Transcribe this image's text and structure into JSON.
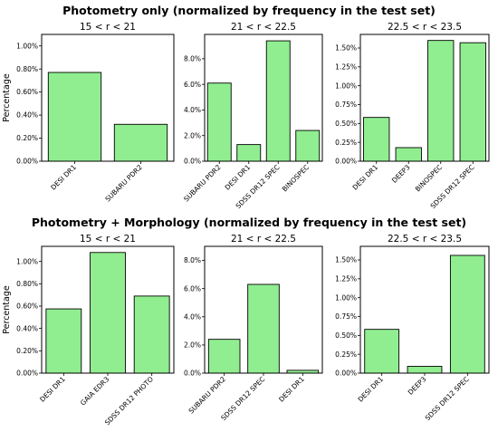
{
  "titles": {
    "top": "Photometry only (normalized by frequency in the test set)",
    "bottom": "Photometry + Morphology (normalized by frequency in the test set)"
  },
  "colors": {
    "bar_fill": "#90ee90",
    "bar_edge": "#000000"
  },
  "chart_data": [
    {
      "type": "bar",
      "group": "Photometry only",
      "title": "15 < r < 21",
      "ylabel": "Percentage",
      "categories": [
        "DESI DR1",
        "SUBARU PDR2"
      ],
      "values": [
        0.77,
        0.32
      ],
      "ylim": [
        0,
        1.1
      ],
      "yticks": [
        "0.00%",
        "0.20%",
        "0.40%",
        "0.60%",
        "0.80%",
        "1.00%"
      ],
      "ytick_values": [
        0,
        0.2,
        0.4,
        0.6,
        0.8,
        1.0
      ]
    },
    {
      "type": "bar",
      "group": "Photometry only",
      "title": "21 < r < 22.5",
      "categories": [
        "SUBARU PDR2",
        "DESI DR1",
        "SDSS DR12 SPEC",
        "BINOSPEC"
      ],
      "values": [
        6.1,
        1.3,
        9.4,
        2.4
      ],
      "ylim": [
        0,
        9.9
      ],
      "yticks": [
        "0.0%",
        "2.0%",
        "4.0%",
        "6.0%",
        "8.0%"
      ],
      "ytick_values": [
        0,
        2,
        4,
        6,
        8
      ]
    },
    {
      "type": "bar",
      "group": "Photometry only",
      "title": "22.5 < r < 23.5",
      "categories": [
        "DESI DR1",
        "DEEP3",
        "BINOSPEC",
        "SDSS DR12 SPEC"
      ],
      "values": [
        0.58,
        0.18,
        1.6,
        1.57
      ],
      "ylim": [
        0,
        1.68
      ],
      "yticks": [
        "0.00%",
        "0.25%",
        "0.50%",
        "0.75%",
        "1.00%",
        "1.25%",
        "1.50%"
      ],
      "ytick_values": [
        0,
        0.25,
        0.5,
        0.75,
        1.0,
        1.25,
        1.5
      ]
    },
    {
      "type": "bar",
      "group": "Photometry + Morphology",
      "title": "15 < r < 21",
      "ylabel": "Percentage",
      "categories": [
        "DESI DR1",
        "GAIA EDR3",
        "SDSS DR12 PHOTO"
      ],
      "values": [
        0.575,
        1.08,
        0.69
      ],
      "ylim": [
        0,
        1.135
      ],
      "yticks": [
        "0.00%",
        "0.20%",
        "0.40%",
        "0.60%",
        "0.80%",
        "1.00%"
      ],
      "ytick_values": [
        0,
        0.2,
        0.4,
        0.6,
        0.8,
        1.0
      ]
    },
    {
      "type": "bar",
      "group": "Photometry + Morphology",
      "title": "21 < r < 22.5",
      "categories": [
        "SUBARU PDR2",
        "SDSS DR12 SPEC",
        "DESI DR1"
      ],
      "values": [
        2.4,
        6.3,
        0.2
      ],
      "ylim": [
        0,
        9.0
      ],
      "yticks": [
        "0.0%",
        "2.0%",
        "4.0%",
        "6.0%",
        "8.0%"
      ],
      "ytick_values": [
        0,
        2,
        4,
        6,
        8
      ]
    },
    {
      "type": "bar",
      "group": "Photometry + Morphology",
      "title": "22.5 < r < 23.5",
      "categories": [
        "DESI DR1",
        "DEEP3",
        "SDSS DR12 SPEC"
      ],
      "values": [
        0.58,
        0.09,
        1.56
      ],
      "ylim": [
        0,
        1.68
      ],
      "yticks": [
        "0.00%",
        "0.25%",
        "0.50%",
        "0.75%",
        "1.00%",
        "1.25%",
        "1.50%"
      ],
      "ytick_values": [
        0,
        0.25,
        0.5,
        0.75,
        1.0,
        1.25,
        1.5
      ]
    }
  ]
}
